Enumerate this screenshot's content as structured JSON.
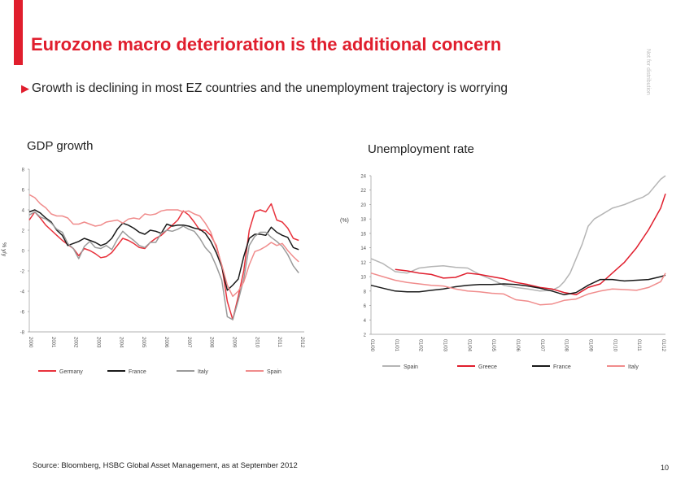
{
  "slide": {
    "title": "Eurozone macro deterioration is the additional concern",
    "side_text": "Not for distribution",
    "subtitle": "Growth is declining in most EZ countries and the unemployment trajectory is worrying",
    "source": "Source: Bloomberg, HSBC Global Asset Management, as at September 2012",
    "page_number": "10",
    "accent_color": "#e01e2d"
  },
  "chart_data": [
    {
      "type": "line",
      "title": "GDP growth",
      "ylabel": "% y/y",
      "ylim": [
        -8,
        8
      ],
      "yticks": [
        8,
        6,
        4,
        2,
        0,
        -2,
        -4,
        -6,
        -8
      ],
      "xlim": [
        2000,
        2012.5
      ],
      "xtick_labels": [
        "2000",
        "2001",
        "2002",
        "2003",
        "2004",
        "2005",
        "2006",
        "2007",
        "2008",
        "2009",
        "2010",
        "2011",
        "2012"
      ],
      "series": [
        {
          "name": "Germany",
          "color": "#e8323c",
          "x": [
            2000,
            2000.25,
            2000.5,
            2000.75,
            2001,
            2001.25,
            2001.5,
            2001.75,
            2002,
            2002.25,
            2002.5,
            2002.75,
            2003,
            2003.25,
            2003.5,
            2003.75,
            2004,
            2004.25,
            2004.5,
            2004.75,
            2005,
            2005.25,
            2005.5,
            2005.75,
            2006,
            2006.25,
            2006.5,
            2006.75,
            2007,
            2007.25,
            2007.5,
            2007.75,
            2008,
            2008.25,
            2008.5,
            2008.75,
            2009,
            2009.25,
            2009.5,
            2009.75,
            2010,
            2010.25,
            2010.5,
            2010.75,
            2011,
            2011.25,
            2011.5,
            2011.75,
            2012,
            2012.25
          ],
          "y": [
            3.0,
            3.8,
            3.2,
            2.5,
            2.0,
            1.5,
            1.0,
            0.6,
            0.2,
            -0.5,
            0.2,
            0.0,
            -0.3,
            -0.7,
            -0.6,
            -0.2,
            0.5,
            1.2,
            1.0,
            0.7,
            0.3,
            0.2,
            0.8,
            1.2,
            1.5,
            2.0,
            2.5,
            3.0,
            3.9,
            3.5,
            2.8,
            2.0,
            2.0,
            1.5,
            0.5,
            -1.5,
            -5.0,
            -6.8,
            -4.5,
            -2.0,
            2.0,
            3.8,
            4.0,
            3.8,
            4.6,
            3.0,
            2.8,
            2.2,
            1.2,
            1.0
          ]
        },
        {
          "name": "France",
          "color": "#1a1a1a",
          "x": [
            2000,
            2000.25,
            2000.5,
            2000.75,
            2001,
            2001.25,
            2001.5,
            2001.75,
            2002,
            2002.25,
            2002.5,
            2002.75,
            2003,
            2003.25,
            2003.5,
            2003.75,
            2004,
            2004.25,
            2004.5,
            2004.75,
            2005,
            2005.25,
            2005.5,
            2005.75,
            2006,
            2006.25,
            2006.5,
            2006.75,
            2007,
            2007.25,
            2007.5,
            2007.75,
            2008,
            2008.25,
            2008.5,
            2008.75,
            2009,
            2009.25,
            2009.5,
            2009.75,
            2010,
            2010.25,
            2010.5,
            2010.75,
            2011,
            2011.25,
            2011.5,
            2011.75,
            2012,
            2012.25
          ],
          "y": [
            3.8,
            4.0,
            3.7,
            3.2,
            2.8,
            2.0,
            1.5,
            0.5,
            0.7,
            0.9,
            1.2,
            1.0,
            0.8,
            0.5,
            0.7,
            1.2,
            2.1,
            2.7,
            2.5,
            2.2,
            1.8,
            1.6,
            2.0,
            1.9,
            1.7,
            2.6,
            2.4,
            2.5,
            2.5,
            2.4,
            2.2,
            2.1,
            1.7,
            0.9,
            -0.2,
            -1.6,
            -3.9,
            -3.4,
            -2.8,
            -0.6,
            1.2,
            1.6,
            1.6,
            1.5,
            2.3,
            1.8,
            1.5,
            1.3,
            0.3,
            0.1
          ]
        },
        {
          "name": "Italy",
          "color": "#9a9a9a",
          "x": [
            2000,
            2000.25,
            2000.5,
            2000.75,
            2001,
            2001.25,
            2001.5,
            2001.75,
            2002,
            2002.25,
            2002.5,
            2002.75,
            2003,
            2003.25,
            2003.5,
            2003.75,
            2004,
            2004.25,
            2004.5,
            2004.75,
            2005,
            2005.25,
            2005.5,
            2005.75,
            2006,
            2006.25,
            2006.5,
            2006.75,
            2007,
            2007.25,
            2007.5,
            2007.75,
            2008,
            2008.25,
            2008.5,
            2008.75,
            2009,
            2009.25,
            2009.5,
            2009.75,
            2010,
            2010.25,
            2010.5,
            2010.75,
            2011,
            2011.25,
            2011.5,
            2011.75,
            2012,
            2012.25
          ],
          "y": [
            3.5,
            3.8,
            3.3,
            3.1,
            2.7,
            2.1,
            1.8,
            0.7,
            0.2,
            -0.8,
            0.4,
            0.9,
            0.3,
            0.2,
            0.5,
            0.1,
            1.1,
            1.9,
            1.4,
            1.0,
            0.5,
            0.3,
            0.8,
            0.8,
            1.7,
            2.0,
            1.9,
            2.1,
            2.4,
            2.1,
            1.9,
            1.2,
            0.3,
            -0.3,
            -1.5,
            -2.9,
            -6.5,
            -6.8,
            -4.9,
            -2.8,
            0.5,
            1.4,
            1.8,
            1.8,
            1.3,
            0.9,
            0.4,
            -0.4,
            -1.5,
            -2.2
          ]
        },
        {
          "name": "Spain",
          "color": "#f08c8c",
          "x": [
            2000,
            2000.25,
            2000.5,
            2000.75,
            2001,
            2001.25,
            2001.5,
            2001.75,
            2002,
            2002.25,
            2002.5,
            2002.75,
            2003,
            2003.25,
            2003.5,
            2003.75,
            2004,
            2004.25,
            2004.5,
            2004.75,
            2005,
            2005.25,
            2005.5,
            2005.75,
            2006,
            2006.25,
            2006.5,
            2006.75,
            2007,
            2007.25,
            2007.5,
            2007.75,
            2008,
            2008.25,
            2008.5,
            2008.75,
            2009,
            2009.25,
            2009.5,
            2009.75,
            2010,
            2010.25,
            2010.5,
            2010.75,
            2011,
            2011.25,
            2011.5,
            2011.75,
            2012,
            2012.25
          ],
          "y": [
            5.5,
            5.2,
            4.6,
            4.2,
            3.6,
            3.4,
            3.4,
            3.2,
            2.6,
            2.6,
            2.8,
            2.6,
            2.4,
            2.5,
            2.8,
            2.9,
            3.0,
            2.7,
            3.1,
            3.2,
            3.1,
            3.6,
            3.5,
            3.6,
            3.9,
            4.0,
            4.0,
            4.0,
            3.8,
            3.9,
            3.6,
            3.4,
            2.7,
            1.8,
            0.3,
            -1.4,
            -3.4,
            -4.5,
            -4.0,
            -3.1,
            -1.4,
            -0.1,
            0.1,
            0.4,
            0.8,
            0.5,
            0.7,
            0.0,
            -0.6,
            -1.1
          ]
        }
      ]
    },
    {
      "type": "line",
      "title": "Unemployment rate",
      "ylabel": "(%)",
      "ylim": [
        2,
        24
      ],
      "yticks": [
        24,
        22,
        20,
        18,
        16,
        14,
        12,
        10,
        8,
        6,
        4,
        2
      ],
      "xlim": [
        2000,
        2012.2
      ],
      "xtick_labels": [
        "01/00",
        "01/01",
        "01/02",
        "01/03",
        "01/04",
        "01/05",
        "01/06",
        "01/07",
        "01/08",
        "01/09",
        "01/10",
        "01/11",
        "01/12"
      ],
      "series": [
        {
          "name": "Spain",
          "color": "#b5b5b5",
          "x": [
            2000,
            2000.5,
            2001,
            2001.5,
            2002,
            2002.5,
            2003,
            2003.5,
            2004,
            2004.5,
            2005,
            2005.5,
            2006,
            2006.5,
            2007,
            2007.5,
            2007.8,
            2008,
            2008.25,
            2008.5,
            2008.75,
            2009,
            2009.25,
            2009.5,
            2010,
            2010.5,
            2011,
            2011.25,
            2011.5,
            2011.75,
            2012,
            2012.2
          ],
          "y": [
            12.5,
            11.8,
            10.7,
            10.5,
            11.2,
            11.4,
            11.5,
            11.3,
            11.2,
            10.3,
            9.6,
            8.8,
            8.5,
            8.3,
            8.0,
            8.1,
            8.6,
            9.3,
            10.5,
            12.5,
            14.5,
            17.0,
            18.0,
            18.5,
            19.5,
            20.0,
            20.7,
            21.0,
            21.5,
            22.5,
            23.5,
            24.0
          ]
        },
        {
          "name": "Greece",
          "color": "#e01e2d",
          "x": [
            2001,
            2001.5,
            2002,
            2002.5,
            2003,
            2003.5,
            2004,
            2004.5,
            2005,
            2005.5,
            2006,
            2006.5,
            2007,
            2007.5,
            2008,
            2008.5,
            2009,
            2009.5,
            2010,
            2010.5,
            2011,
            2011.5,
            2012,
            2012.2
          ],
          "y": [
            11.0,
            10.8,
            10.5,
            10.3,
            9.8,
            9.9,
            10.5,
            10.3,
            10.0,
            9.7,
            9.2,
            8.9,
            8.5,
            8.3,
            7.8,
            7.5,
            8.5,
            9.0,
            10.5,
            12.0,
            14.0,
            16.5,
            19.5,
            21.5
          ]
        },
        {
          "name": "France",
          "color": "#1a1a1a",
          "x": [
            2000,
            2000.5,
            2001,
            2001.5,
            2002,
            2002.5,
            2003,
            2003.5,
            2004,
            2004.5,
            2005,
            2005.5,
            2006,
            2006.5,
            2007,
            2007.5,
            2008,
            2008.5,
            2009,
            2009.5,
            2010,
            2010.5,
            2011,
            2011.5,
            2012,
            2012.2
          ],
          "y": [
            8.8,
            8.4,
            8.0,
            7.9,
            7.9,
            8.1,
            8.3,
            8.6,
            8.8,
            8.9,
            8.9,
            9.0,
            8.9,
            8.7,
            8.4,
            8.0,
            7.5,
            7.8,
            8.8,
            9.6,
            9.6,
            9.4,
            9.5,
            9.6,
            10.0,
            10.2
          ]
        },
        {
          "name": "Italy",
          "color": "#f08c8c",
          "x": [
            2000,
            2000.5,
            2001,
            2001.5,
            2002,
            2002.5,
            2003,
            2003.5,
            2004,
            2004.5,
            2005,
            2005.5,
            2006,
            2006.5,
            2007,
            2007.5,
            2008,
            2008.5,
            2009,
            2009.5,
            2010,
            2010.5,
            2011,
            2011.5,
            2012,
            2012.2
          ],
          "y": [
            10.5,
            10.0,
            9.5,
            9.2,
            9.0,
            8.8,
            8.7,
            8.3,
            8.0,
            7.9,
            7.7,
            7.6,
            6.8,
            6.6,
            6.1,
            6.2,
            6.7,
            6.9,
            7.6,
            8.0,
            8.3,
            8.2,
            8.1,
            8.5,
            9.3,
            10.5
          ]
        }
      ]
    }
  ]
}
